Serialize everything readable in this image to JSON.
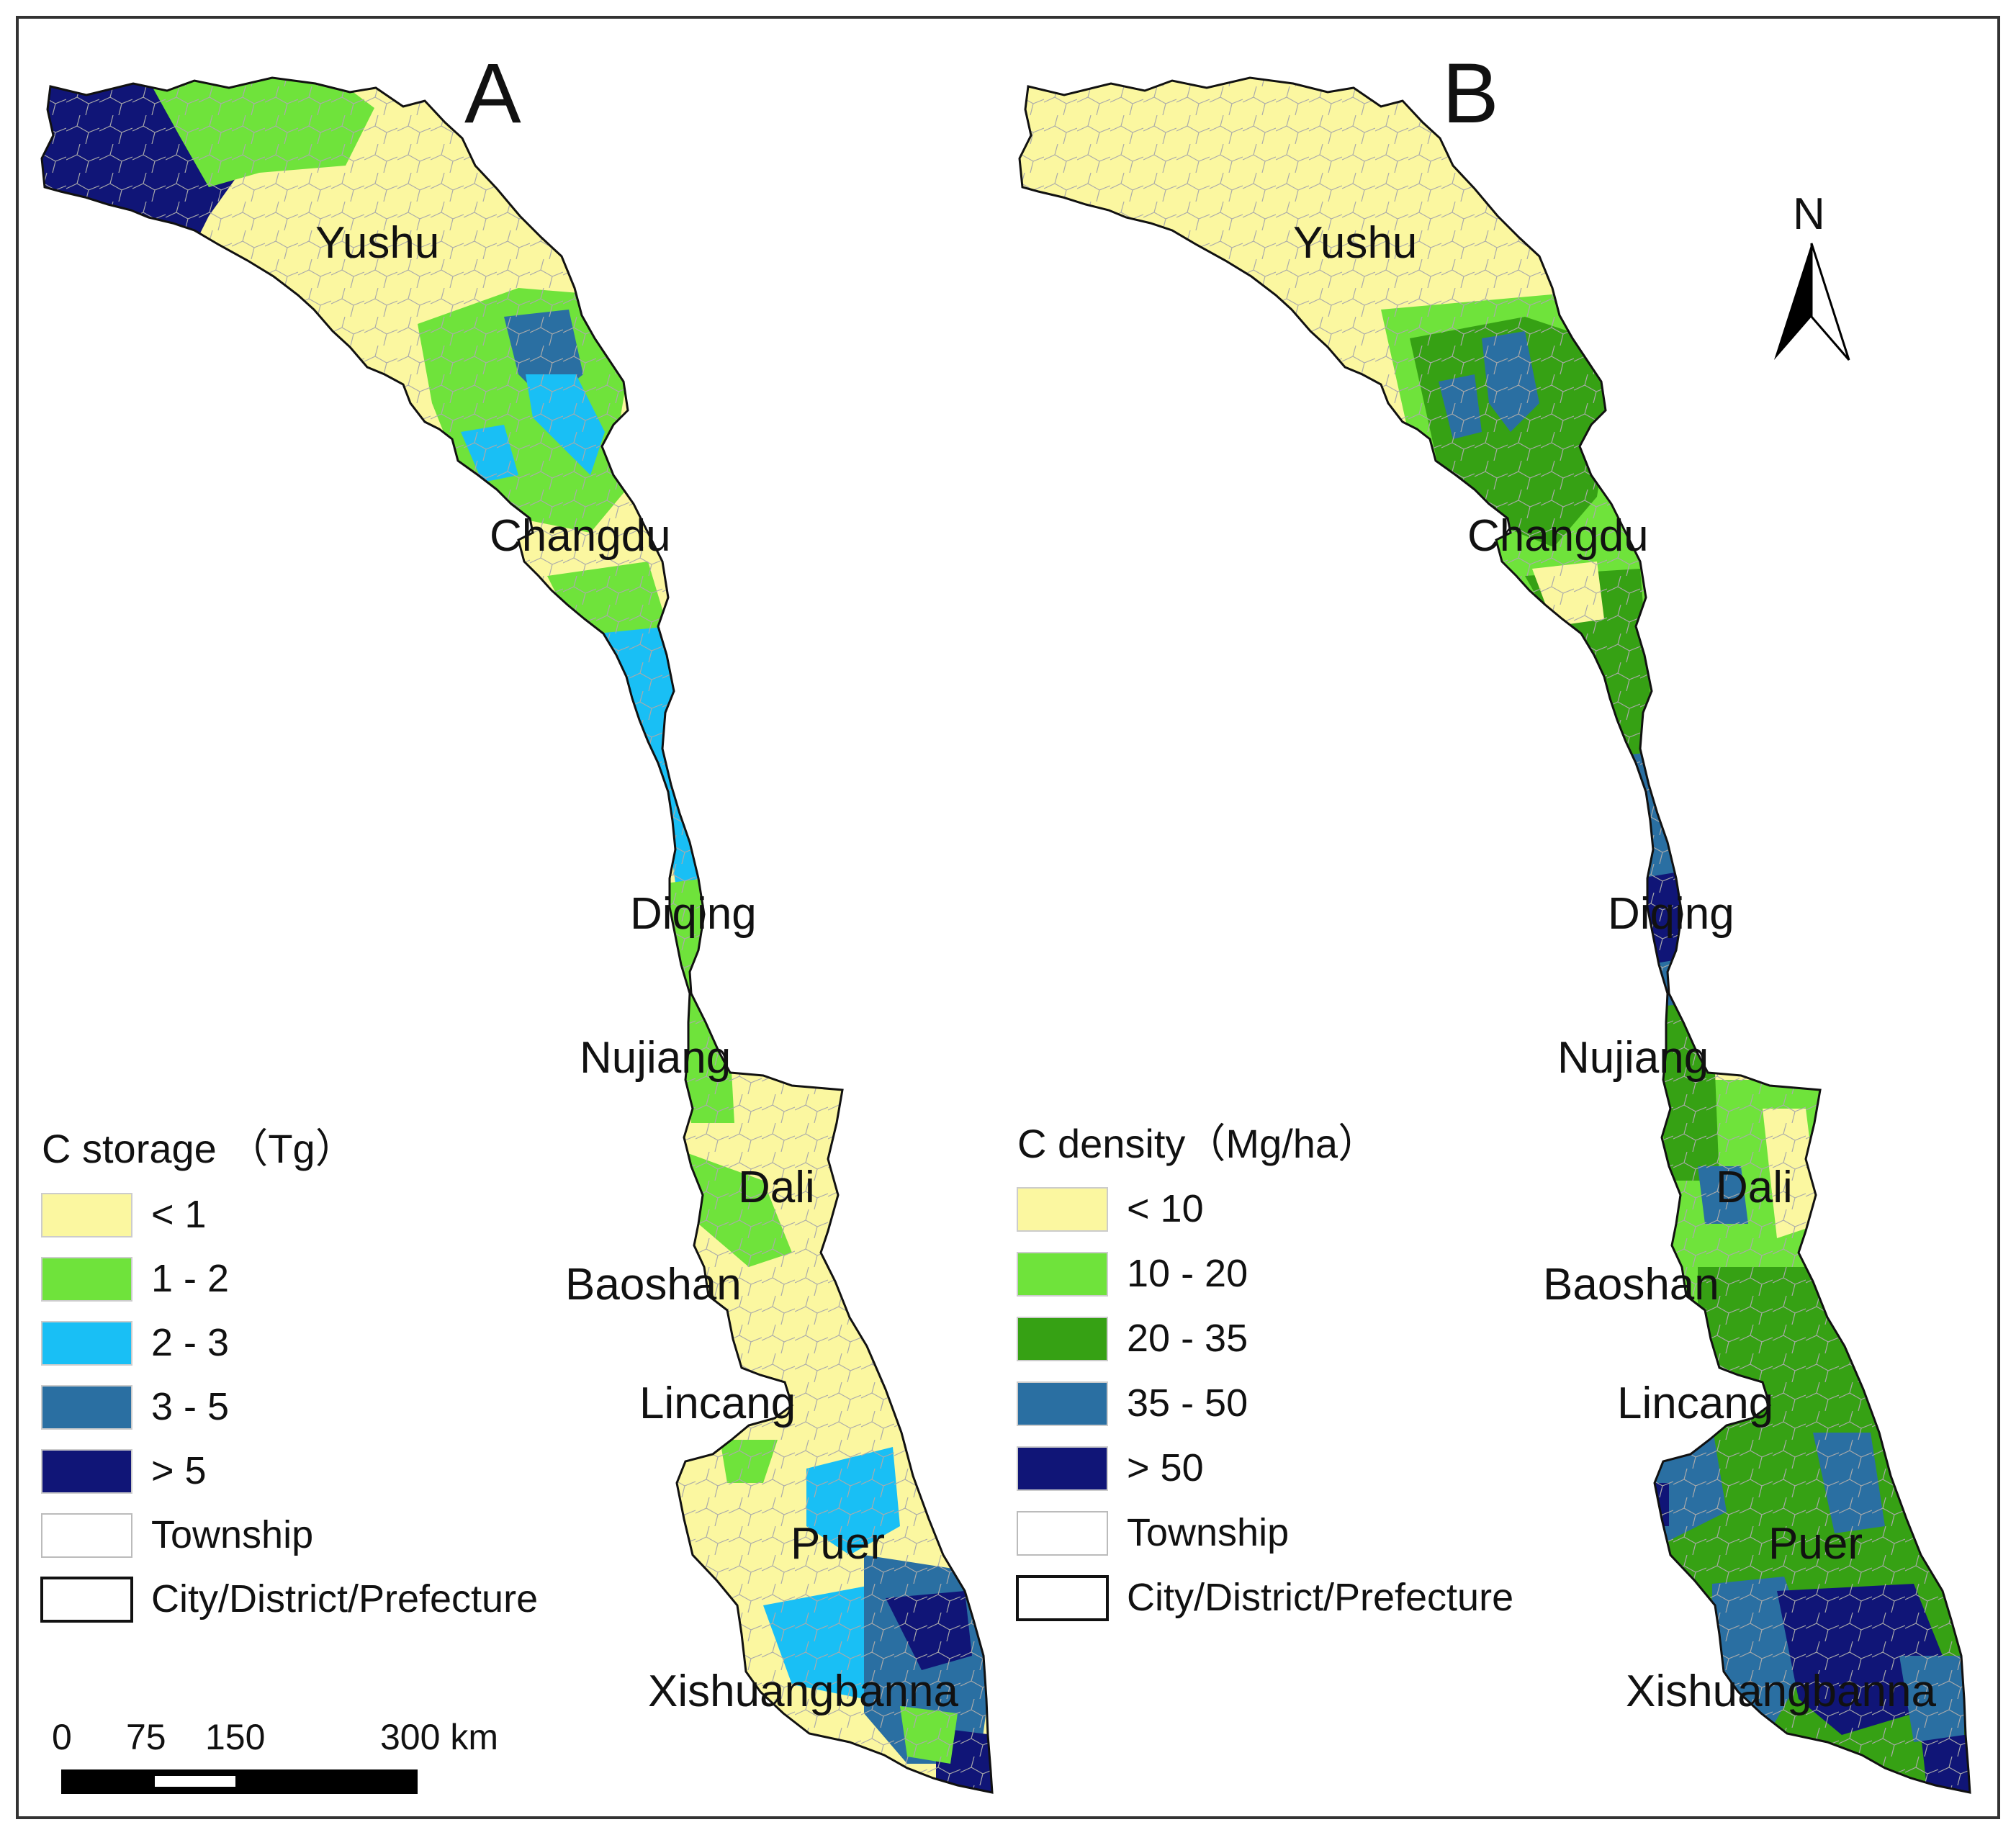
{
  "figure": {
    "panels": [
      {
        "id": "A",
        "letter": "A",
        "legend": {
          "title": "C storage （Tg）",
          "classes": [
            {
              "label": "< 1",
              "color": "#fbf7a0"
            },
            {
              "label": "1 - 2",
              "color": "#6fe33b"
            },
            {
              "label": "2 - 3",
              "color": "#19bff5"
            },
            {
              "label": "3 - 5",
              "color": "#2a6fa2"
            },
            {
              "label": "> 5",
              "color": "#101577"
            }
          ],
          "township_label": "Township",
          "boundary_label": "City/District/Prefecture"
        }
      },
      {
        "id": "B",
        "letter": "B",
        "legend": {
          "title": "C density（Mg/ha）",
          "classes": [
            {
              "label": "< 10",
              "color": "#fbf7a0"
            },
            {
              "label": "10 - 20",
              "color": "#6fe33b"
            },
            {
              "label": "20 - 35",
              "color": "#36a114"
            },
            {
              "label": "35 - 50",
              "color": "#2a6fa2"
            },
            {
              "label": "> 50",
              "color": "#101577"
            }
          ],
          "township_label": "Township",
          "boundary_label": "City/District/Prefecture"
        }
      }
    ],
    "places": [
      "Yushu",
      "Changdu",
      "Diqing",
      "Nujiang",
      "Dali",
      "Baoshan",
      "Lincang",
      "Puer",
      "Xishuangbanna"
    ],
    "scale_bar": {
      "ticks": [
        "0",
        "75",
        "150",
        "300 km"
      ]
    },
    "north_arrow": "N"
  }
}
